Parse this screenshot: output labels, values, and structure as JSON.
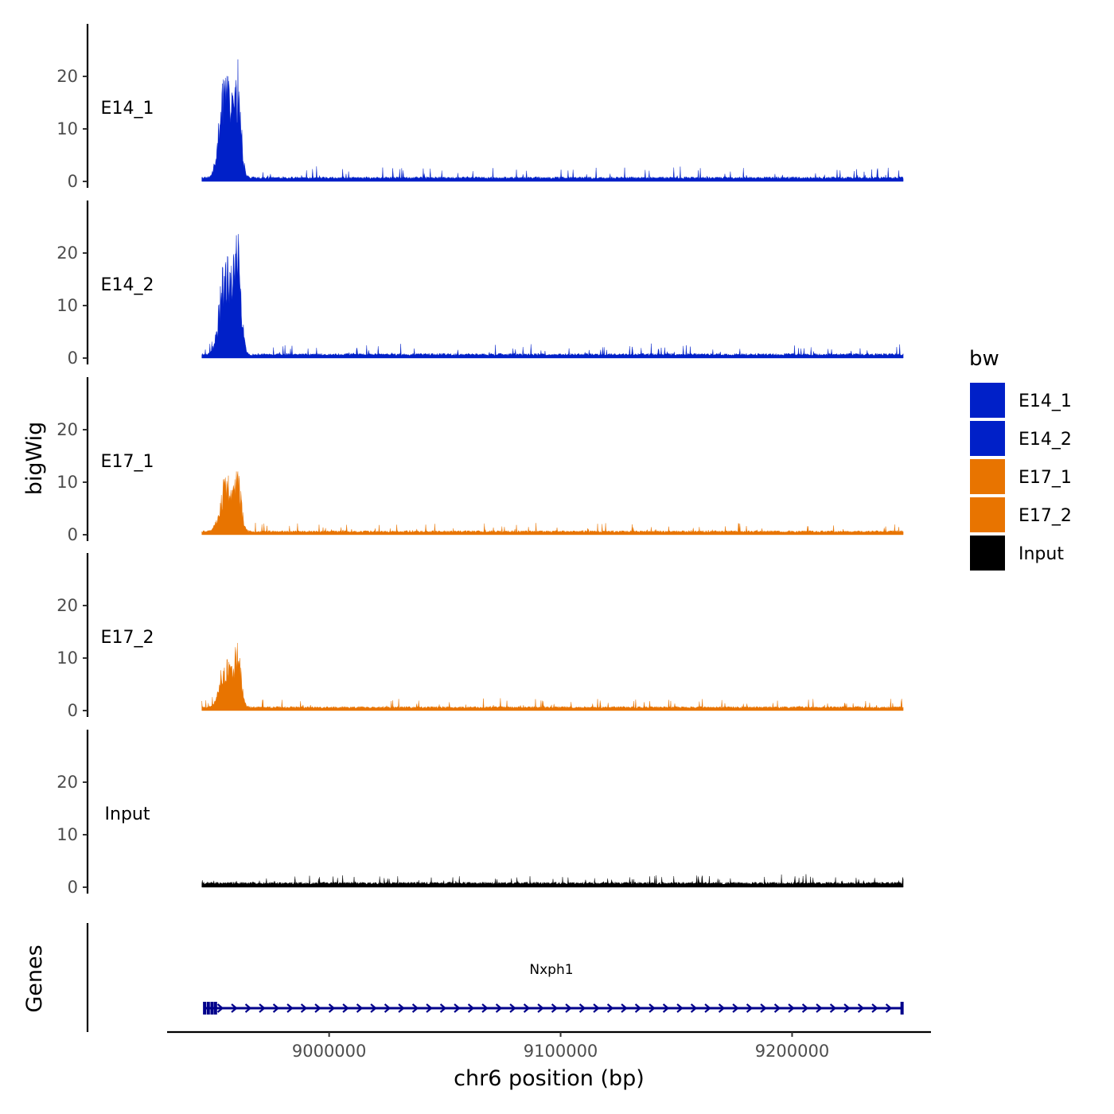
{
  "chart_data": {
    "type": "area",
    "ylabel": "bigWig",
    "xlabel": "chr6 position (bp)",
    "chromosome": "chr6",
    "xlim": [
      8930000,
      9260000
    ],
    "data_x_range": [
      8945000,
      9248000
    ],
    "x_ticks": [
      9000000,
      9100000,
      9200000
    ],
    "x_tick_labels": [
      "9000000",
      "9100000",
      "9200000"
    ],
    "ylim": [
      0,
      30
    ],
    "y_ticks": [
      0,
      10,
      20
    ],
    "y_tick_labels": [
      "0",
      "10",
      "20"
    ],
    "series": [
      {
        "name": "E14_1",
        "color": "#0020C8",
        "baseline": 0.9,
        "noise": 2.0,
        "peaks": [
          {
            "center": 8955500,
            "width": 2500,
            "height": 22
          },
          {
            "center": 8960500,
            "width": 1500,
            "height": 19
          }
        ]
      },
      {
        "name": "E14_2",
        "color": "#0020C8",
        "baseline": 0.9,
        "noise": 2.0,
        "peaks": [
          {
            "center": 8955500,
            "width": 2500,
            "height": 21
          },
          {
            "center": 8960500,
            "width": 1500,
            "height": 22
          }
        ]
      },
      {
        "name": "E17_1",
        "color": "#E87400",
        "baseline": 0.8,
        "noise": 1.7,
        "peaks": [
          {
            "center": 8955500,
            "width": 2500,
            "height": 11
          },
          {
            "center": 8960500,
            "width": 1500,
            "height": 11
          }
        ]
      },
      {
        "name": "E17_2",
        "color": "#E87400",
        "baseline": 0.8,
        "noise": 1.7,
        "peaks": [
          {
            "center": 8955500,
            "width": 2500,
            "height": 10
          },
          {
            "center": 8960500,
            "width": 1500,
            "height": 12
          }
        ]
      },
      {
        "name": "Input",
        "color": "#000000",
        "baseline": 1.0,
        "noise": 1.5,
        "peaks": []
      }
    ],
    "genes_track": {
      "label": "Genes",
      "color": "#00008B",
      "genes": [
        {
          "name": "Nxph1",
          "start": 8946000,
          "end": 9248000,
          "strand": "+",
          "exons": [
            8946200,
            8947800,
            8949400,
            8950900,
            9247500
          ]
        }
      ]
    },
    "legend": {
      "title": "bw",
      "position": "right",
      "entries": [
        {
          "label": "E14_1",
          "color": "#0020C8"
        },
        {
          "label": "E14_2",
          "color": "#0020C8"
        },
        {
          "label": "E17_1",
          "color": "#E87400"
        },
        {
          "label": "E17_2",
          "color": "#E87400"
        },
        {
          "label": "Input",
          "color": "#000000"
        }
      ]
    },
    "grid": false
  }
}
